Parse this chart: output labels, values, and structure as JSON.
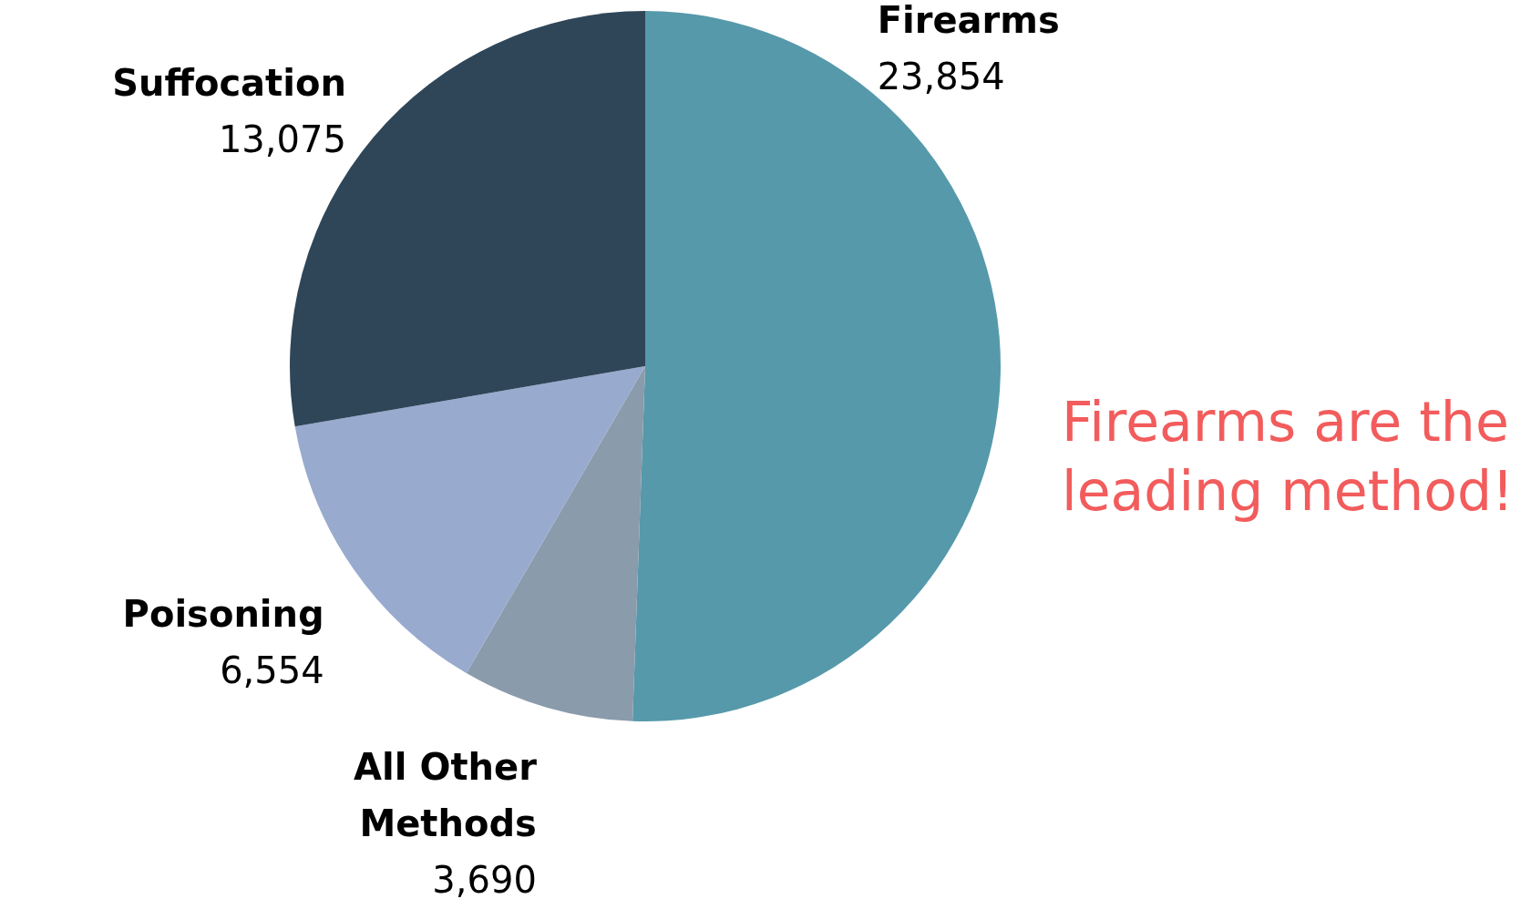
{
  "chart_data": {
    "type": "pie",
    "categories": [
      "Firearms",
      "All Other Methods",
      "Poisoning",
      "Suffocation"
    ],
    "values": [
      23854,
      3690,
      6554,
      13075
    ],
    "colors": [
      "#5699aa",
      "#8a9bab",
      "#99aacf",
      "#2f4659"
    ],
    "value_labels": [
      "23,854",
      "3,690",
      "6,554",
      "13,075"
    ],
    "legend": false,
    "annotations": [
      "Firearms are the leading method!"
    ]
  }
}
